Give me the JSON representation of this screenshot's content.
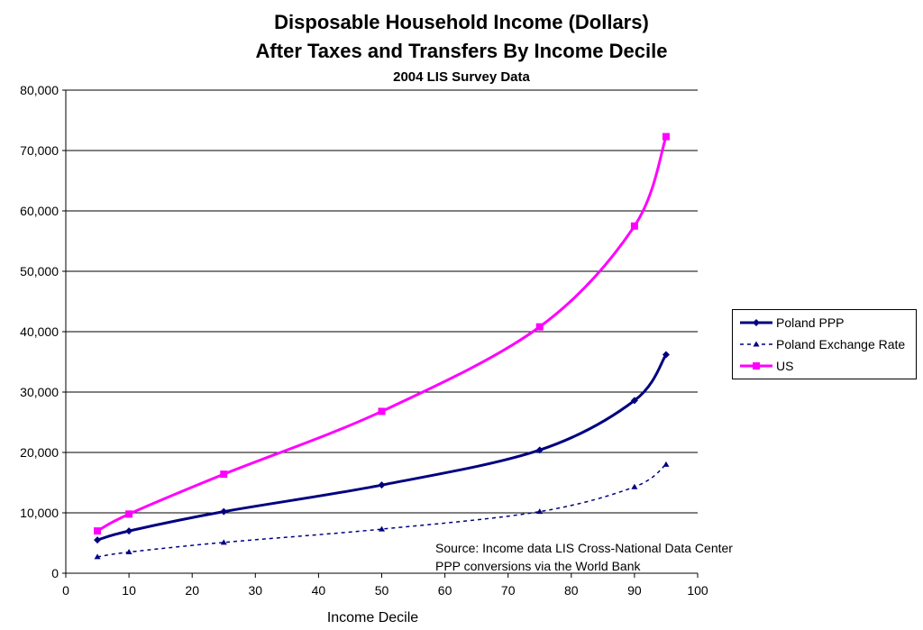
{
  "chart_data": {
    "type": "line",
    "title": "Disposable Household Income (Dollars)",
    "title_line2": "After Taxes and Transfers By Income Decile",
    "subtitle": "2004 LIS Survey Data",
    "xlabel": "Income Decile",
    "ylabel": "",
    "xlim": [
      0,
      100
    ],
    "ylim": [
      0,
      80000
    ],
    "xticks": [
      0,
      10,
      20,
      30,
      40,
      50,
      60,
      70,
      80,
      90,
      100
    ],
    "yticks": [
      0,
      10000,
      20000,
      30000,
      40000,
      50000,
      60000,
      70000,
      80000
    ],
    "ytick_labels": [
      "0",
      "10,000",
      "20,000",
      "30,000",
      "40,000",
      "50,000",
      "60,000",
      "70,000",
      "80,000"
    ],
    "grid": "horizontal",
    "legend_position": "right",
    "x": [
      5,
      10,
      25,
      50,
      75,
      90,
      95
    ],
    "series": [
      {
        "name": "Poland PPP",
        "values": [
          5500,
          7000,
          10200,
          14600,
          20400,
          28600,
          36200
        ],
        "color": "#000080",
        "style": "solid",
        "marker": "diamond"
      },
      {
        "name": "Poland Exchange Rate",
        "values": [
          2700,
          3500,
          5100,
          7300,
          10200,
          14300,
          18000
        ],
        "color": "#000080",
        "style": "dashed",
        "marker": "triangle"
      },
      {
        "name": "US",
        "values": [
          7000,
          9800,
          16400,
          26800,
          40800,
          57500,
          72300
        ],
        "color": "#ff00ff",
        "style": "solid",
        "marker": "square"
      }
    ],
    "annotation": [
      "Source:  Income data LIS Cross-National Data Center",
      "PPP conversions via the World Bank"
    ]
  }
}
